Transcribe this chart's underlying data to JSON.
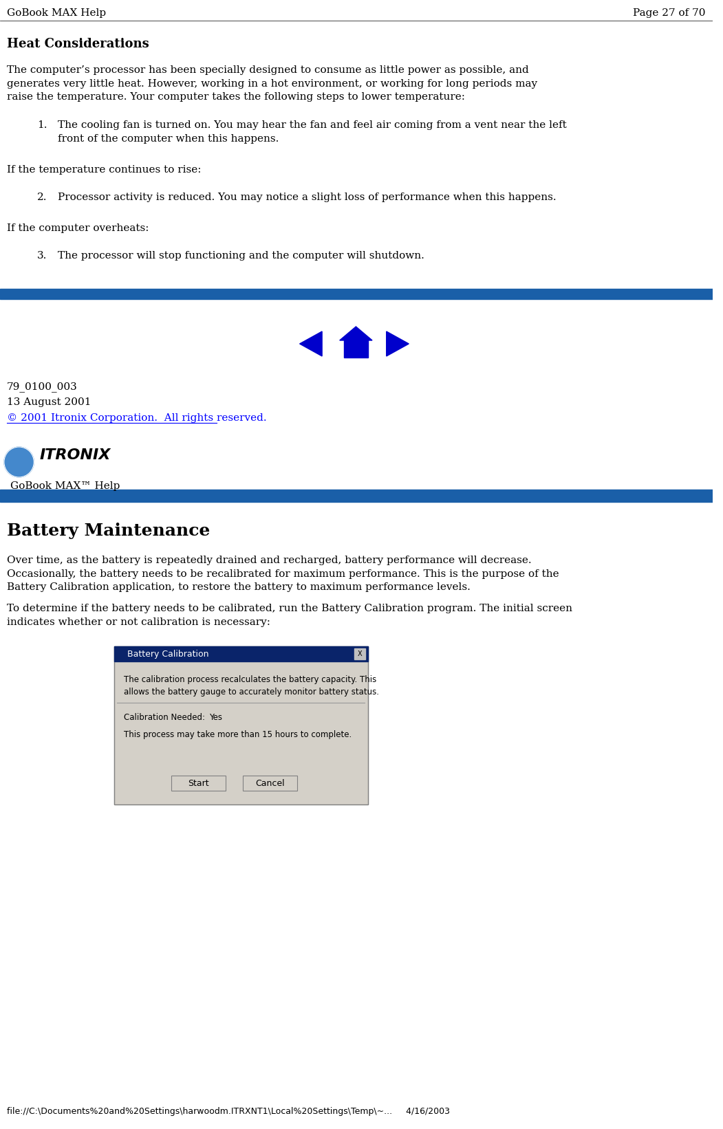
{
  "bg_color": "#ffffff",
  "header_left": "GoBook MAX Help",
  "header_right": "Page 27 of 70",
  "header_font_size": 11,
  "section1_title": "Heat Considerations",
  "section1_title_fontsize": 13,
  "section1_body": "The computer’s processor has been specially designed to consume as little power as possible, and\ngenerates very little heat. However, working in a hot environment, or working for long periods may\nraise the temperature. Your computer takes the following steps to lower temperature:",
  "item1": "The cooling fan is turned on. You may hear the fan and feel air coming from a vent near the left\nfront of the computer when this happens.",
  "inter1": "If the temperature continues to rise:",
  "item2": "Processor activity is reduced. You may notice a slight loss of performance when this happens.",
  "inter2": "If the computer overheats:",
  "item3": "The processor will stop functioning and the computer will shutdown.",
  "footer_line1": "79_0100_003",
  "footer_line2": "13 August 2001",
  "footer_line3": "© 2001 Itronix Corporation.  All rights reserved.",
  "footer_color": "#0000ff",
  "footer_fontsize": 11,
  "gobook_bar_label": "GoBook MAX™ Help",
  "bar_color": "#1a5fa8",
  "section2_title": "Battery Maintenance",
  "section2_title_fontsize": 18,
  "section2_body1": "Over time, as the battery is repeatedly drained and recharged, battery performance will decrease.\nOccasionally, the battery needs to be recalibrated for maximum performance. This is the purpose of the\nBattery Calibration application, to restore the battery to maximum performance levels.",
  "section2_body2": "To determine if the battery needs to be calibrated, run the Battery Calibration program. The initial screen\nindicates whether or not calibration is necessary:",
  "bottom_url": "file://C:\\Documents%20and%20Settings\\harwoodm.ITRXNT1\\Local%20Settings\\Temp\\~...     4/16/2003",
  "body_fontsize": 11,
  "nav_arrow_color": "#0000cc",
  "dialog_bg": "#d4d0c8",
  "dialog_title_bg": "#0a246a",
  "dialog_title_fg": "#ffffff",
  "dialog_title": "Battery Calibration",
  "dialog_body1": "The calibration process recalculates the battery capacity. This",
  "dialog_body2": "allows the battery gauge to accurately monitor battery status.",
  "dialog_label": "Calibration Needed:",
  "dialog_value": "Yes",
  "dialog_note": "This process may take more than 15 hours to complete.",
  "dialog_btn1": "Start",
  "dialog_btn2": "Cancel"
}
